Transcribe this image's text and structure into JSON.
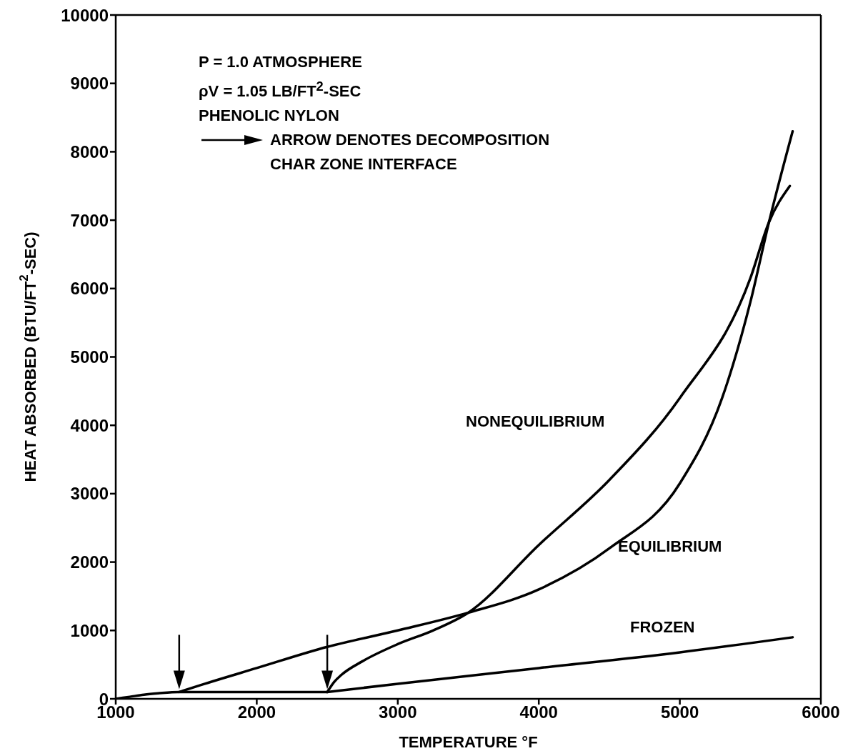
{
  "chart_data": {
    "type": "line",
    "xlabel": "TEMPERATURE °F",
    "ylabel": "HEAT ABSORBED (BTU/FT$^{2}$-SEC)",
    "xlim": [
      1000,
      6000
    ],
    "xticks": [
      1000,
      2000,
      3000,
      4000,
      5000,
      6000
    ],
    "ylim": [
      0,
      10000
    ],
    "yticks": [
      0,
      1000,
      2000,
      3000,
      4000,
      5000,
      6000,
      7000,
      8000,
      9000,
      10000
    ],
    "marker": "none",
    "line_style": "solid",
    "series": [
      {
        "color": "#000000",
        "x": [
          1000,
          1100,
          1200,
          1300,
          1450,
          1800,
          2200,
          2500
        ],
        "values": [
          0,
          30,
          60,
          80,
          100,
          100,
          100,
          100
        ]
      },
      {
        "name": "EQUILIBRIUM",
        "color": "#000000",
        "x": [
          1450,
          1600,
          2000,
          2500,
          3000,
          3500,
          4000,
          4500,
          5000,
          5300,
          5500,
          5632,
          5800
        ],
        "values": [
          100,
          200,
          450,
          760,
          1000,
          1260,
          1600,
          2200,
          3150,
          4400,
          5800,
          6970,
          8300
        ]
      },
      {
        "name": "NONEQUILIBRIUM",
        "color": "#000000",
        "x": [
          2500,
          2550,
          2600,
          2750,
          3000,
          3250,
          3500,
          4000,
          4500,
          5000,
          5500,
          5632,
          5780
        ],
        "values": [
          100,
          250,
          350,
          550,
          800,
          1000,
          1260,
          2250,
          3200,
          4400,
          6150,
          6970,
          7500
        ]
      },
      {
        "name": "FROZEN",
        "color": "#000000",
        "x": [
          2500,
          3000,
          4000,
          5000,
          5800
        ],
        "values": [
          100,
          220,
          450,
          680,
          900
        ]
      }
    ],
    "annotations": [
      "P = 1.0 ATMOSPHERE",
      "ρV = 1.05 LB/FT$^{2}$-SEC",
      "PHENOLIC NYLON",
      "ARROW DENOTES DECOMPOSITION",
      "CHAR ZONE INTERFACE"
    ]
  }
}
